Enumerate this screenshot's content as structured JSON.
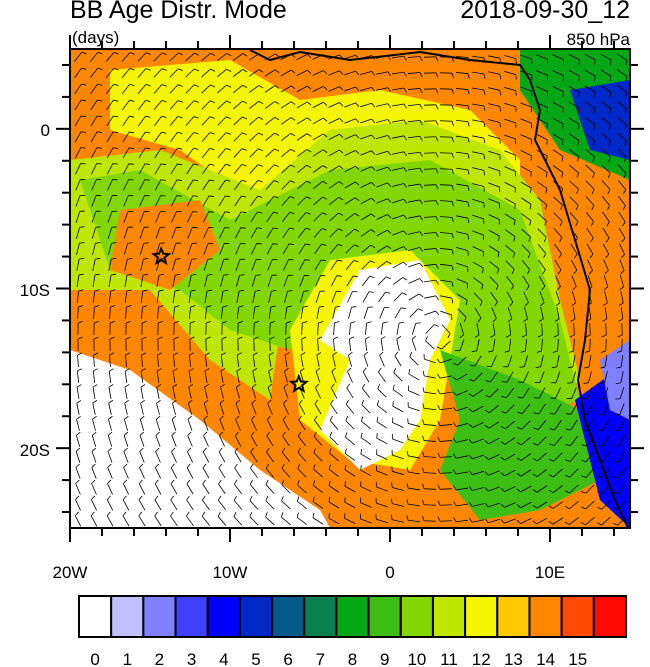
{
  "title": "BB Age Distr. Mode",
  "datetime": "2018-09-30_12",
  "units": "(days)",
  "level": "850 hPa",
  "map": {
    "lon_range": [
      -20,
      15
    ],
    "lat_range": [
      -25,
      5
    ],
    "lon_labels": [
      "20W",
      "10W",
      "0",
      "10E"
    ],
    "lat_labels": [
      "0",
      "10S",
      "20S"
    ],
    "markers": [
      {
        "type": "star",
        "lon": -14.3,
        "lat": -8
      },
      {
        "type": "star",
        "lon": -5.7,
        "lat": -16
      }
    ],
    "overlay": "wind-barbs"
  },
  "colorbar": {
    "labels": [
      "0",
      "1",
      "2",
      "3",
      "4",
      "5",
      "6",
      "7",
      "8",
      "9",
      "10",
      "11",
      "12",
      "13",
      "14",
      "15"
    ],
    "colors": [
      "#ffffff",
      "#c0c0ff",
      "#8080ff",
      "#4040ff",
      "#0000ff",
      "#0028c8",
      "#055a8c",
      "#08804f",
      "#05a814",
      "#3cbe14",
      "#82d700",
      "#bee600",
      "#f5f500",
      "#ffc800",
      "#ff8700",
      "#ff4b00",
      "#ff0a00"
    ]
  }
}
